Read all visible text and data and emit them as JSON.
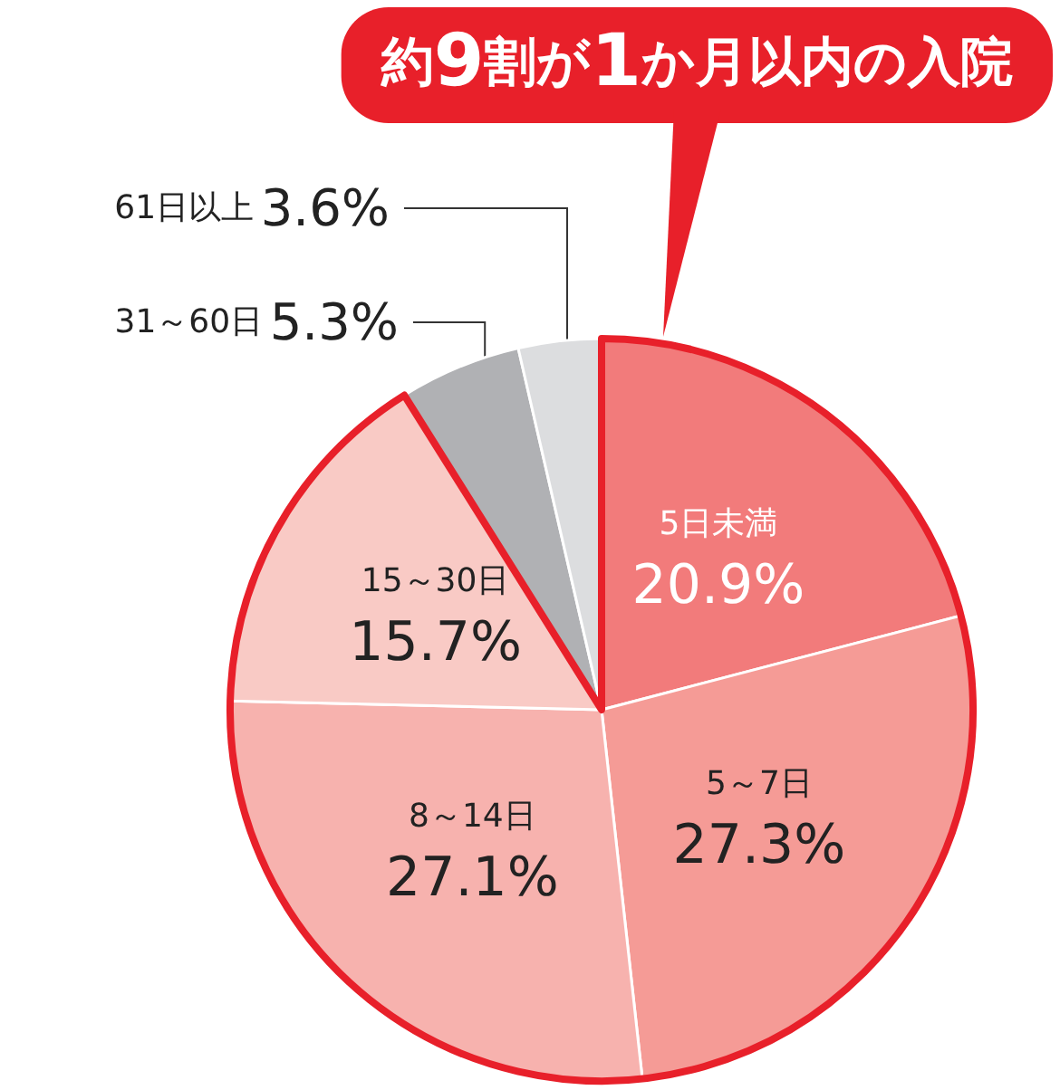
{
  "chart_data": {
    "type": "pie",
    "title": "約9割が1か月以内の入院",
    "categories": [
      "5日未満",
      "5～7日",
      "8～14日",
      "15～30日",
      "31～60日",
      "61日以上"
    ],
    "values": [
      20.9,
      27.3,
      27.1,
      15.7,
      5.3,
      3.6
    ],
    "value_labels": [
      "20.9%",
      "27.3%",
      "27.1%",
      "15.7%",
      "5.3%",
      "3.6%"
    ],
    "colors": [
      "#f27b7b",
      "#f59b96",
      "#f7b2ae",
      "#f9cac5",
      "#b0b1b4",
      "#dcdddf"
    ]
  }
}
